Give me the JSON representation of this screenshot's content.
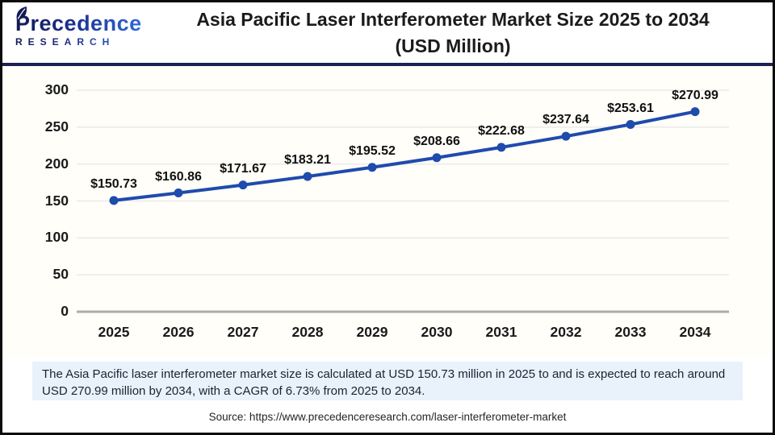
{
  "header": {
    "logo": {
      "brand": "Precedence",
      "subtitle": "RESEARCH"
    },
    "title_line1": "Asia Pacific Laser Interferometer Market Size 2025 to 2034",
    "title_line2": "(USD Million)"
  },
  "chart_data": {
    "type": "line",
    "title": "Asia Pacific Laser Interferometer Market Size 2025 to 2034 (USD Million)",
    "categories": [
      "2025",
      "2026",
      "2027",
      "2028",
      "2029",
      "2030",
      "2031",
      "2032",
      "2033",
      "2034"
    ],
    "values": [
      150.73,
      160.86,
      171.67,
      183.21,
      195.52,
      208.66,
      222.68,
      237.64,
      253.61,
      270.99
    ],
    "value_prefix": "$",
    "unit": "USD Million",
    "xlabel": "",
    "ylabel": "",
    "ylim": [
      0,
      300
    ],
    "yticks": [
      0,
      50,
      100,
      150,
      200,
      250,
      300
    ],
    "grid": true,
    "legend": "none",
    "line_color": "#1F4BAD",
    "marker": "circle"
  },
  "footer": {
    "description": "The Asia Pacific laser interferometer market size is calculated at USD 150.73 million in 2025 to and is expected to reach around USD 270.99 million by 2034, with a CAGR of 6.73% from 2025 to 2034.",
    "source": "Source: https://www.precedenceresearch.com/laser-interferometer-market"
  },
  "colors": {
    "accent_line": "#1F4BAD",
    "separator": "#1B2150",
    "description_bg": "#E9F1FB",
    "gridline": "#EAEAEA",
    "zero_axis": "#ACACAC",
    "logo_navy": "#141A52",
    "logo_blue": "#2E6BDB"
  }
}
